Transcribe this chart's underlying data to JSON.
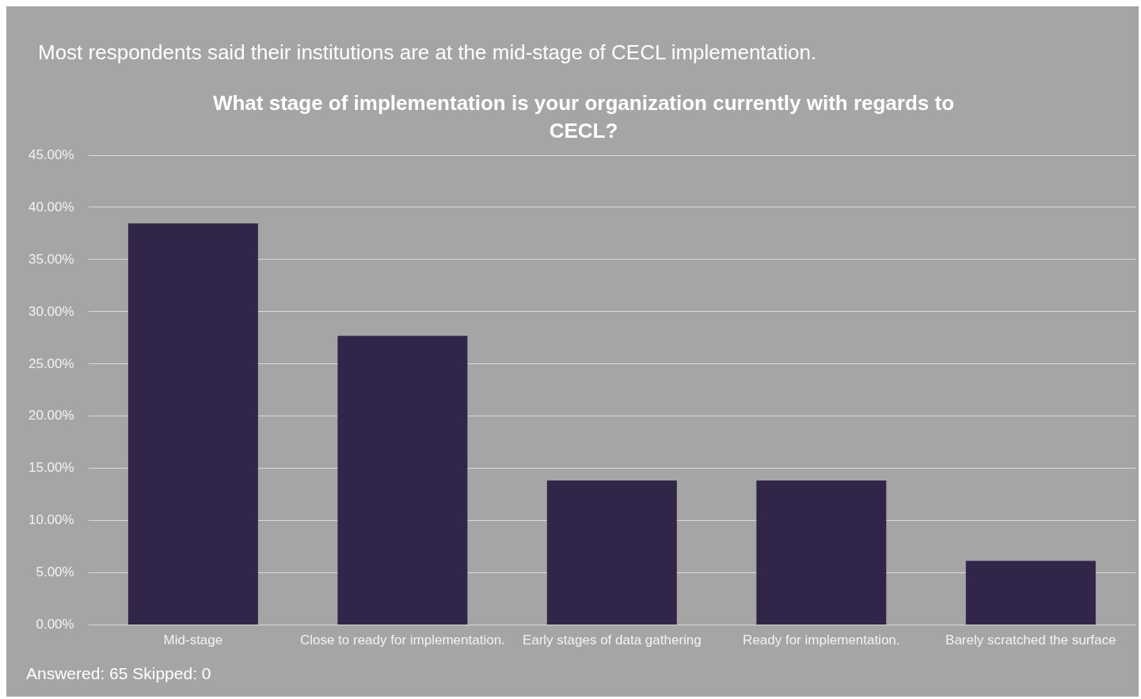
{
  "chart_data": {
    "type": "bar",
    "title": "Most respondents said their institutions are at the mid-stage of CECL implementation.",
    "subtitle": "What stage of implementation is your organization currently with regards to CECL?",
    "categories": [
      "Mid-stage",
      "Close to ready for implementation.",
      "Early stages of data gathering",
      "Ready for implementation.",
      "Barely scratched the surface"
    ],
    "values": [
      38.46,
      27.69,
      13.85,
      13.85,
      6.15
    ],
    "color": "#31264a",
    "ylim": [
      0,
      45
    ],
    "yticks": [
      {
        "value": 0,
        "label": "0.00%"
      },
      {
        "value": 5,
        "label": "5.00%"
      },
      {
        "value": 10,
        "label": "10.00%"
      },
      {
        "value": 15,
        "label": "15.00%"
      },
      {
        "value": 20,
        "label": "20.00%"
      },
      {
        "value": 25,
        "label": "25.00%"
      },
      {
        "value": 30,
        "label": "30.00%"
      },
      {
        "value": 35,
        "label": "35.00%"
      },
      {
        "value": 40,
        "label": "40.00%"
      },
      {
        "value": 45,
        "label": "45.00%"
      }
    ],
    "grid": "y",
    "legend": false,
    "annotations": [
      "Answered: 65 Skipped: 0"
    ]
  }
}
